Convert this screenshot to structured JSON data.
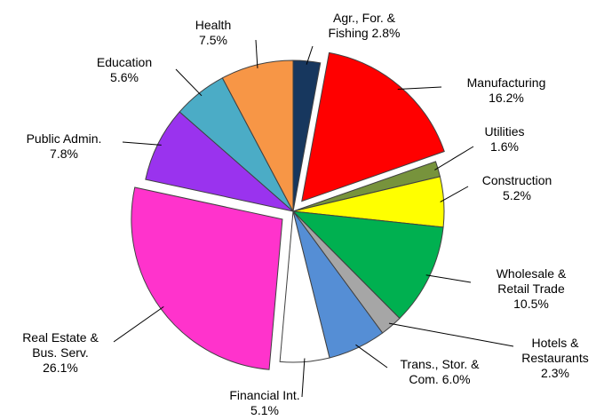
{
  "chart_data": {
    "type": "pie",
    "categories": [
      "Agr., For. & Fishing",
      "Manufacturing",
      "Utilities",
      "Construction",
      "Wholesale & Retail Trade",
      "Hotels & Restaurants",
      "Trans., Stor. & Com.",
      "Financial Int.",
      "Real Estate & Bus. Serv.",
      "Public Admin.",
      "Education",
      "Health"
    ],
    "values": [
      2.8,
      16.2,
      1.6,
      5.2,
      10.5,
      2.3,
      6.0,
      5.1,
      26.1,
      7.8,
      5.6,
      7.5
    ],
    "value_labels": [
      "2.8%",
      "16.2%",
      "1.6%",
      "5.2%",
      "10.5%",
      "2.3%",
      "6.0%",
      "5.1%",
      "26.1%",
      "7.8%",
      "5.6%",
      "7.5%"
    ],
    "colors": [
      "#17375e",
      "#ff0000",
      "#77933c",
      "#ffff00",
      "#00b050",
      "#a6a6a6",
      "#558ed5",
      "#ffffff",
      "#ff33cc",
      "#9a33ee",
      "#4bacc6",
      "#f79646"
    ],
    "exploded": [
      "Manufacturing",
      "Real Estate & Bus. Serv."
    ]
  }
}
